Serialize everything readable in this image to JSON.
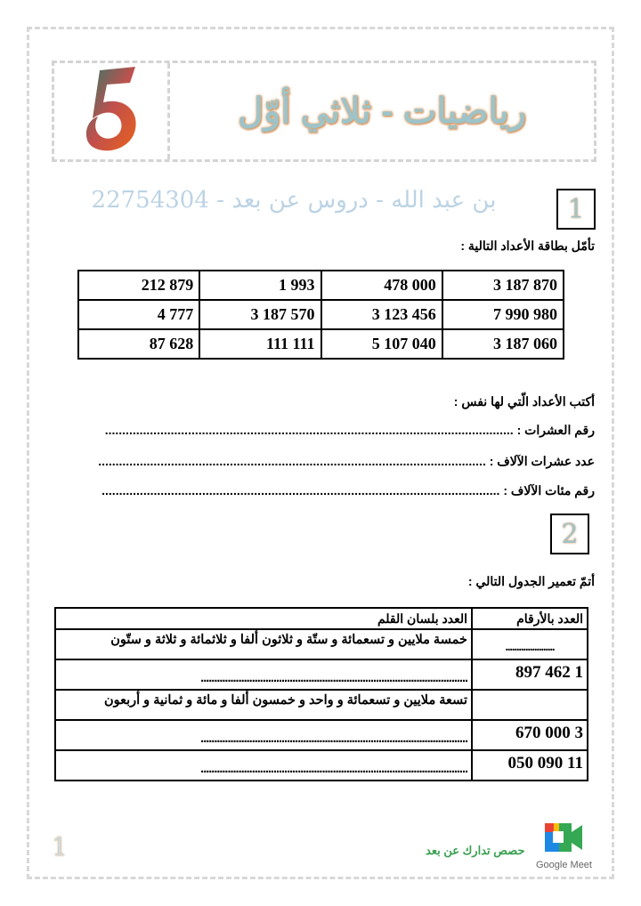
{
  "header": {
    "title": "رياضيات - ثلاثي أوّل",
    "logo": "5"
  },
  "exercise1": {
    "number": "1",
    "instruction": "تأمّل بطاقة الأعداد التالية :",
    "numbers": [
      [
        "3 187 870",
        "478 000",
        "1 993",
        "212 879"
      ],
      [
        "7 990 980",
        "3 123 456",
        "3 187 570",
        "4 777"
      ],
      [
        "3 187 060",
        "5 107 040",
        "111 111",
        "87 628"
      ]
    ],
    "prompt": "أكتب الأعداد الّتي لها نفس :",
    "lines": [
      {
        "label": "رقم العشرات :",
        "dots": "......................................................................................................................"
      },
      {
        "label": "عدد عشرات الآلاف :",
        "dots": "................................................................................................................"
      },
      {
        "label": "رقم مئات الآلاف :",
        "dots": "..................................................................................................................."
      }
    ]
  },
  "exercise2": {
    "number": "2",
    "instruction": "أتمّ تعمير الجدول التالي :",
    "headers": {
      "digits": "العدد بالأرقام",
      "words": "العدد بلسان القلم"
    },
    "rows": [
      {
        "digits": "......................",
        "words": "خمسة ملايين و تسعمائة و ستّة و ثلاثون ألفا و ثلاثمائة و ثلاثة و ستّون"
      },
      {
        "digits": "1 462 897",
        "words": "..................................................................................................."
      },
      {
        "digits": "",
        "words": "تسعة ملايين و تسعمائة و واحد و خمسون ألفا و مائة و ثمانية و أربعون"
      },
      {
        "digits": "3 000 670",
        "words": "..................................................................................................."
      },
      {
        "digits": "11 090 050",
        "words": "..................................................................................................."
      }
    ]
  },
  "watermark": "بن عبد الله - دروس عن بعد - 22754304",
  "footer": {
    "page_number": "1",
    "slogan": "حصص تدارك عن بعد",
    "brand": "Google Meet",
    "brand_icon": "google-meet-icon"
  }
}
